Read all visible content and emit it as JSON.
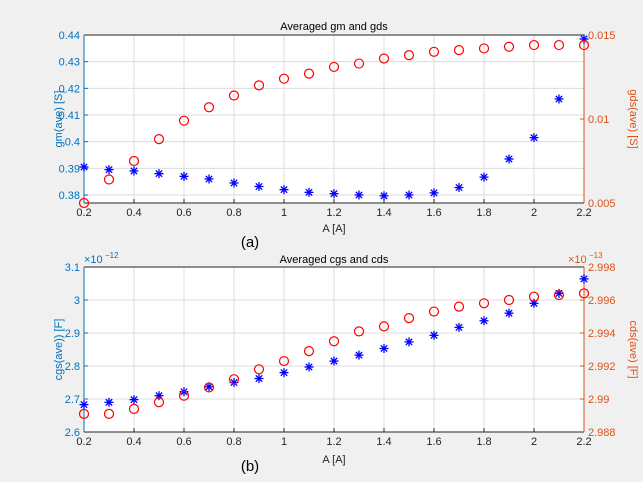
{
  "colors": {
    "left_axis": "#0072BD",
    "right_axis": "#D95319",
    "marker_left": "#0000FF",
    "marker_right": "#FF0000",
    "grid": "#dcdcdc",
    "plot_bg": "#ffffff",
    "figure_bg": "#f0f0f0",
    "axis_dark": "#262626"
  },
  "captions": [
    "(a)",
    "(b)"
  ],
  "chart_data": [
    {
      "type": "scatter",
      "title": "Averaged gm and gds",
      "xlabel": "A [A]",
      "ylabel_left": "gm(ave) [S]",
      "ylabel_right": "gds(ave) [S]",
      "xlim": [
        0.2,
        2.2
      ],
      "ylim_left": [
        0.377,
        0.44
      ],
      "ylim_right": [
        0.005,
        0.015
      ],
      "xticks": [
        "0.2",
        "0.4",
        "0.6",
        "0.8",
        "1",
        "1.2",
        "1.4",
        "1.6",
        "1.8",
        "2",
        "2.2"
      ],
      "yticks_left": [
        "0.38",
        "0.39",
        "0.4",
        "0.41",
        "0.42",
        "0.43",
        "0.44"
      ],
      "yticks_right": [
        "0.005",
        "0.01",
        "0.015"
      ],
      "grid": true,
      "x": [
        0.2,
        0.3,
        0.4,
        0.5,
        0.6,
        0.7,
        0.8,
        0.9,
        1.0,
        1.1,
        1.2,
        1.3,
        1.4,
        1.5,
        1.6,
        1.7,
        1.8,
        1.9,
        2.0,
        2.1,
        2.2
      ],
      "series": [
        {
          "axis": "left",
          "marker": "asterisk",
          "values": [
            0.3905,
            0.3895,
            0.389,
            0.388,
            0.387,
            0.386,
            0.3845,
            0.3832,
            0.382,
            0.381,
            0.3805,
            0.38,
            0.3797,
            0.38,
            0.3808,
            0.3828,
            0.3867,
            0.3935,
            0.4015,
            0.416,
            0.4385
          ]
        },
        {
          "axis": "right",
          "marker": "circle",
          "values": [
            0.005,
            0.0064,
            0.0075,
            0.0088,
            0.0099,
            0.0107,
            0.0114,
            0.012,
            0.0124,
            0.0127,
            0.0131,
            0.0133,
            0.0136,
            0.0138,
            0.014,
            0.0141,
            0.0142,
            0.0143,
            0.0144,
            0.0144,
            0.0144
          ]
        }
      ]
    },
    {
      "type": "scatter",
      "title": "Averaged cgs and cds",
      "xlabel": "A [A]",
      "ylabel_left": "cgs(ave)) [F]",
      "ylabel_right": "cds(ave) [F]",
      "exponent_left": "×10",
      "exponent_left_power": "−12",
      "exponent_right": "×10",
      "exponent_right_power": "−13",
      "xlim": [
        0.2,
        2.2
      ],
      "ylim_left": [
        2.6,
        3.1
      ],
      "ylim_right": [
        2.988,
        2.998
      ],
      "xticks": [
        "0.2",
        "0.4",
        "0.6",
        "0.8",
        "1",
        "1.2",
        "1.4",
        "1.6",
        "1.8",
        "2",
        "2.2"
      ],
      "yticks_left": [
        "2.6",
        "2.7",
        "2.8",
        "2.9",
        "3",
        "3.1"
      ],
      "yticks_right": [
        "2.988",
        "2.99",
        "2.992",
        "2.994",
        "2.996",
        "2.998"
      ],
      "grid": true,
      "x": [
        0.2,
        0.3,
        0.4,
        0.5,
        0.6,
        0.7,
        0.8,
        0.9,
        1.0,
        1.1,
        1.2,
        1.3,
        1.4,
        1.5,
        1.6,
        1.7,
        1.8,
        1.9,
        2.0,
        2.1,
        2.2
      ],
      "series": [
        {
          "axis": "left",
          "marker": "asterisk",
          "values": [
            2.683,
            2.69,
            2.698,
            2.71,
            2.722,
            2.737,
            2.75,
            2.762,
            2.78,
            2.797,
            2.815,
            2.833,
            2.853,
            2.873,
            2.893,
            2.917,
            2.937,
            2.96,
            2.99,
            3.02,
            3.064
          ]
        },
        {
          "axis": "right",
          "marker": "circle",
          "values": [
            2.9891,
            2.9891,
            2.9894,
            2.9898,
            2.9902,
            2.9907,
            2.9912,
            2.9918,
            2.9923,
            2.9929,
            2.9935,
            2.9941,
            2.9944,
            2.9949,
            2.9953,
            2.9956,
            2.9958,
            2.996,
            2.9962,
            2.9963,
            2.9964
          ]
        }
      ]
    }
  ]
}
